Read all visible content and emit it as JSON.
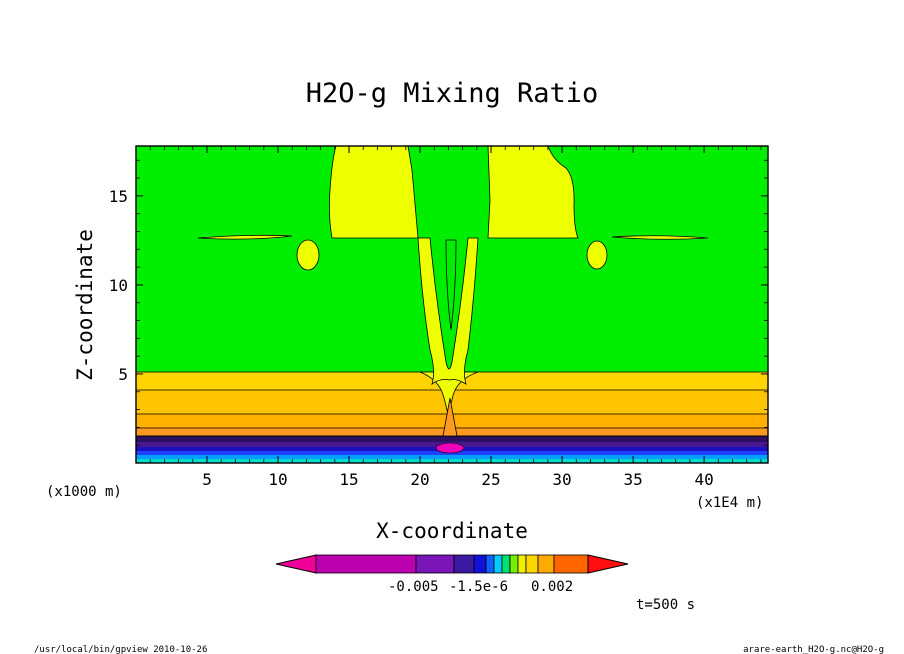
{
  "chart_data": {
    "type": "heatmap",
    "title": "H2O-g Mixing Ratio",
    "xlabel": "X-coordinate",
    "ylabel": "Z-coordinate",
    "x_unit_left": "(x1000 m)",
    "x_unit_right": "(x1E4 m)",
    "xlim": [
      0,
      44.5
    ],
    "ylim": [
      0,
      17.8
    ],
    "x_ticks": [
      5,
      10,
      15,
      20,
      25,
      30,
      35,
      40
    ],
    "y_ticks": [
      5,
      10,
      15
    ],
    "colorbar": {
      "tick_labels": [
        "-0.005",
        "-1.5e-6",
        "0.002"
      ],
      "colors": [
        "#ee0099",
        "#bb00b0",
        "#7a16b8",
        "#3a1aa0",
        "#1010d8",
        "#1060ff",
        "#00ccff",
        "#00e070",
        "#77ee00",
        "#eeee00",
        "#ffd700",
        "#ffaa00",
        "#ff6600",
        "#ff1010"
      ]
    },
    "fields": {
      "background": "#00ee00",
      "upper_lobes": "#eeff00",
      "boundary_layer": [
        "#ffd400",
        "#ffc400",
        "#ffb000",
        "#ff9a20"
      ],
      "surface_bands": [
        "#2a1060",
        "#4a1890",
        "#1a10c0",
        "#2040ff",
        "#00a0ff",
        "#00ddcc"
      ]
    },
    "annotation_time": "t=500 s"
  },
  "footer": {
    "left": "/usr/local/bin/gpview  2010-10-26",
    "right": "arare-earth_H2O-g.nc@H2O-g"
  }
}
